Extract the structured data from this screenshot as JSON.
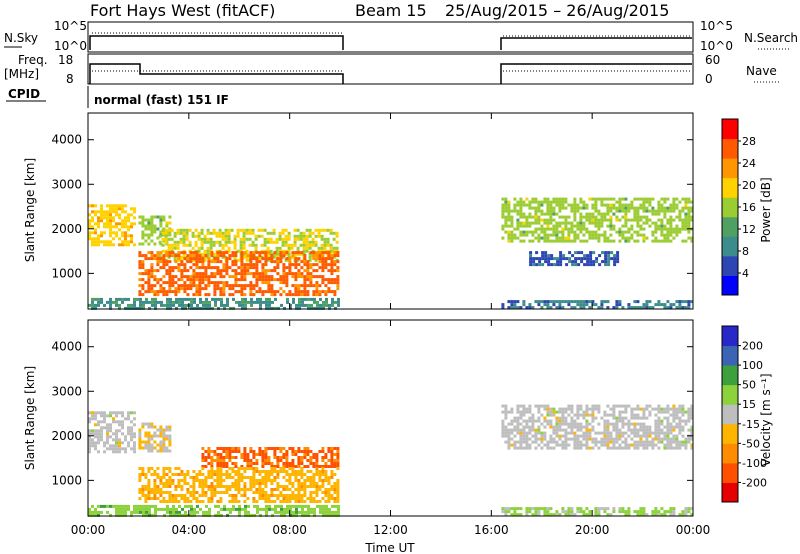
{
  "header": {
    "station": "Fort Hays West (fitACF)",
    "beam": "Beam 15",
    "date_range": "25/Aug/2015 – 26/Aug/2015"
  },
  "status_panels": {
    "nsky_label": "N.Sky",
    "nsky_ticks": [
      "10^5",
      "10^0"
    ],
    "nsearch_label": "N.Search",
    "nsearch_ticks": [
      "10^5",
      "10^0"
    ],
    "freq_label": "Freq.",
    "freq_unit": "[MHz]",
    "freq_ticks": [
      "18",
      "8"
    ],
    "nave_label": "Nave",
    "nave_ticks": [
      "60",
      "0"
    ],
    "cpid_label": "CPID",
    "cpid_value": "normal (fast) 151 IF"
  },
  "colors": {
    "power_scale": [
      "#0000ff",
      "#2e46b4",
      "#3c8c8c",
      "#50a064",
      "#9bcd32",
      "#ffd200",
      "#ff9600",
      "#ff5a00",
      "#ff0000"
    ],
    "velocity_scale": [
      "#2828c8",
      "#3c64b4",
      "#3ca03c",
      "#8cd23c",
      "#bebebe",
      "#ffb400",
      "#ff8c00",
      "#ff5000",
      "#e60000"
    ],
    "ground_scatter": "#bebebe"
  },
  "chart_data": [
    {
      "type": "heatmap",
      "panel": "power",
      "ylabel": "Slant Range [km]",
      "yticks": [
        "1000",
        "2000",
        "3000",
        "4000"
      ],
      "ylim": [
        200,
        4600
      ],
      "xlim_hours": [
        0,
        24
      ],
      "colorbar": {
        "label": "Power [dB]",
        "ticks": [
          "4",
          "8",
          "12",
          "16",
          "20",
          "24",
          "28"
        ],
        "range": [
          0,
          32
        ]
      },
      "regions": [
        {
          "t0": 0.0,
          "t1": 1.9,
          "r0": 1650,
          "r1": 2550,
          "value": 20
        },
        {
          "t0": 2.0,
          "t1": 3.2,
          "r0": 1650,
          "r1": 2300,
          "value": 16
        },
        {
          "t0": 2.8,
          "t1": 9.9,
          "r0": 1300,
          "r1": 2000,
          "value": 18
        },
        {
          "t0": 2.0,
          "t1": 9.9,
          "r0": 500,
          "r1": 1500,
          "value": 26
        },
        {
          "t0": 0.0,
          "t1": 9.9,
          "r0": 200,
          "r1": 450,
          "value": 10
        },
        {
          "t0": 16.4,
          "t1": 24.0,
          "r0": 1750,
          "r1": 2700,
          "value": 16
        },
        {
          "t0": 17.5,
          "t1": 21.0,
          "r0": 1200,
          "r1": 1500,
          "value": 6
        },
        {
          "t0": 16.4,
          "t1": 24.0,
          "r0": 200,
          "r1": 400,
          "value": 8
        }
      ]
    },
    {
      "type": "heatmap",
      "panel": "velocity",
      "ylabel": "Slant Range [km]",
      "yticks": [
        "1000",
        "2000",
        "3000",
        "4000"
      ],
      "ylim": [
        200,
        4600
      ],
      "xlim_hours": [
        0,
        24
      ],
      "xticks": [
        "00:00",
        "04:00",
        "08:00",
        "12:00",
        "16:00",
        "20:00",
        "00:00"
      ],
      "xlabel": "Time UT",
      "colorbar": {
        "label": "Velocity [m s⁻¹]",
        "ticks": [
          "200",
          "100",
          "50",
          "15",
          "-15",
          "-50",
          "-100",
          "-200"
        ],
        "range": [
          -250,
          250
        ]
      },
      "regions": [
        {
          "t0": 0.0,
          "t1": 1.9,
          "r0": 1650,
          "r1": 2550,
          "value": 0
        },
        {
          "t0": 2.0,
          "t1": 3.2,
          "r0": 1650,
          "r1": 2300,
          "value": -30
        },
        {
          "t0": 4.5,
          "t1": 9.9,
          "r0": 1300,
          "r1": 1750,
          "value": -150
        },
        {
          "t0": 2.0,
          "t1": 9.9,
          "r0": 500,
          "r1": 1300,
          "value": -60
        },
        {
          "t0": 0.0,
          "t1": 9.9,
          "r0": 200,
          "r1": 450,
          "value": 60
        },
        {
          "t0": 16.4,
          "t1": 24.0,
          "r0": 1750,
          "r1": 2700,
          "value": 0
        },
        {
          "t0": 16.4,
          "t1": 24.0,
          "r0": 200,
          "r1": 400,
          "value": 40
        }
      ]
    }
  ]
}
